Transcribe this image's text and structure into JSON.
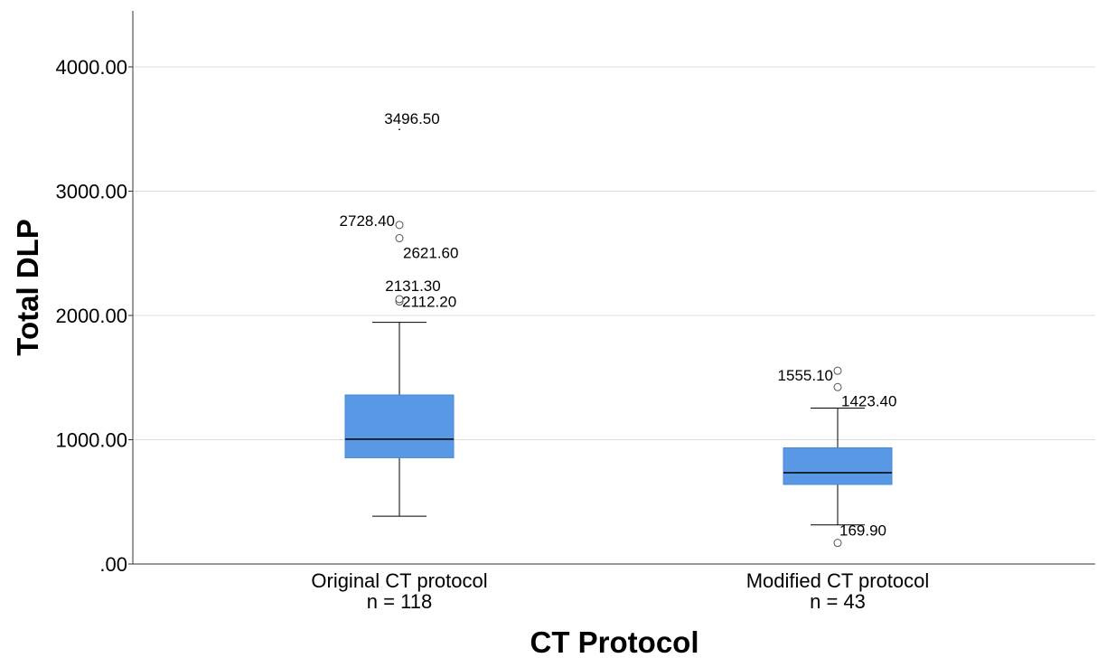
{
  "chart_data": {
    "type": "boxplot",
    "xlabel": "CT Protocol",
    "ylabel": "Total DLP",
    "ylim": [
      0,
      4400
    ],
    "yticks": [
      0,
      1000,
      2000,
      3000,
      4000
    ],
    "ytick_labels": [
      ".00",
      "1000.00",
      "2000.00",
      "3000.00",
      "4000.00"
    ],
    "grid": true,
    "box_color": "#5898e4",
    "groups": [
      {
        "category": "Original CT protocol",
        "n_label": "n = 118",
        "whisker_low": 385,
        "q1": 855,
        "median": 1005,
        "q3": 1360,
        "whisker_high": 1945,
        "outliers": [
          {
            "value": 2112.2,
            "label": "2112.20",
            "marker": "circle"
          },
          {
            "value": 2131.3,
            "label": "2131.30",
            "marker": "circle"
          },
          {
            "value": 2621.6,
            "label": "2621.60",
            "marker": "circle"
          },
          {
            "value": 2728.4,
            "label": "2728.40",
            "marker": "circle"
          },
          {
            "value": 3496.5,
            "label": "3496.50",
            "marker": "extreme"
          }
        ]
      },
      {
        "category": "Modified CT protocol",
        "n_label": "n = 43",
        "whisker_low": 315,
        "q1": 640,
        "median": 735,
        "q3": 935,
        "whisker_high": 1255,
        "outliers": [
          {
            "value": 169.9,
            "label": "169.90",
            "marker": "circle"
          },
          {
            "value": 1423.4,
            "label": "1423.40",
            "marker": "circle"
          },
          {
            "value": 1555.1,
            "label": "1555.10",
            "marker": "circle"
          }
        ]
      }
    ]
  }
}
